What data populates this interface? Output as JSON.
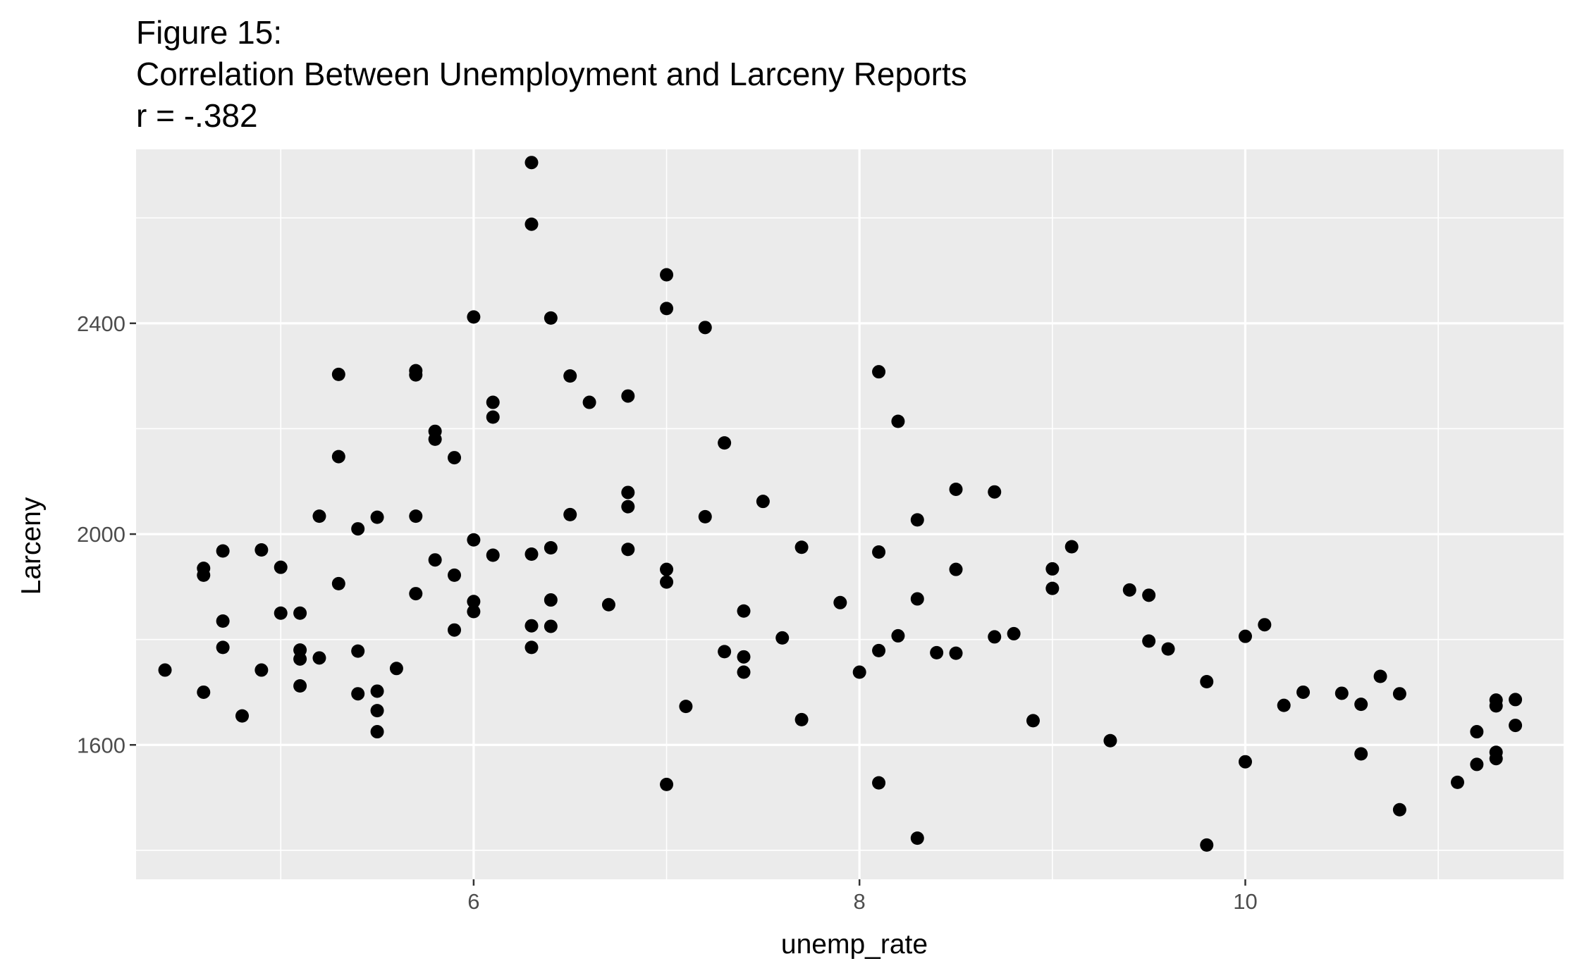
{
  "chart_data": {
    "type": "scatter",
    "title_lines": [
      "Figure 15:",
      "Correlation Between Unemployment and Larceny Reports",
      "r = -.382"
    ],
    "xlabel": "unemp_rate",
    "ylabel": "Larceny",
    "xlim": [
      4.25,
      11.65
    ],
    "ylim": [
      1345,
      2730
    ],
    "x_ticks": [
      6,
      8,
      10
    ],
    "x_minor": [
      5,
      7,
      9,
      11
    ],
    "y_ticks": [
      1600,
      2000,
      2400
    ],
    "y_minor": [
      1400,
      1800,
      2200,
      2600
    ],
    "panel_background": "#ebebeb",
    "grid_color": "#ffffff",
    "point_color": "#000000",
    "grid": true,
    "points": [
      {
        "x": 4.4,
        "y": 1742
      },
      {
        "x": 4.6,
        "y": 1700
      },
      {
        "x": 4.6,
        "y": 1935
      },
      {
        "x": 4.6,
        "y": 1922
      },
      {
        "x": 4.7,
        "y": 1968
      },
      {
        "x": 4.7,
        "y": 1835
      },
      {
        "x": 4.7,
        "y": 1785
      },
      {
        "x": 4.8,
        "y": 1655
      },
      {
        "x": 4.9,
        "y": 1970
      },
      {
        "x": 4.9,
        "y": 1742
      },
      {
        "x": 5.0,
        "y": 1937
      },
      {
        "x": 5.0,
        "y": 1850
      },
      {
        "x": 5.1,
        "y": 1850
      },
      {
        "x": 5.1,
        "y": 1780
      },
      {
        "x": 5.1,
        "y": 1763
      },
      {
        "x": 5.1,
        "y": 1712
      },
      {
        "x": 5.2,
        "y": 2034
      },
      {
        "x": 5.2,
        "y": 1765
      },
      {
        "x": 5.3,
        "y": 2303
      },
      {
        "x": 5.3,
        "y": 2147
      },
      {
        "x": 5.3,
        "y": 1906
      },
      {
        "x": 5.4,
        "y": 2010
      },
      {
        "x": 5.4,
        "y": 1778
      },
      {
        "x": 5.4,
        "y": 1697
      },
      {
        "x": 5.5,
        "y": 2032
      },
      {
        "x": 5.5,
        "y": 1702
      },
      {
        "x": 5.5,
        "y": 1665
      },
      {
        "x": 5.5,
        "y": 1625
      },
      {
        "x": 5.6,
        "y": 1745
      },
      {
        "x": 5.7,
        "y": 2310
      },
      {
        "x": 5.7,
        "y": 2302
      },
      {
        "x": 5.7,
        "y": 2034
      },
      {
        "x": 5.7,
        "y": 1887
      },
      {
        "x": 5.8,
        "y": 2195
      },
      {
        "x": 5.8,
        "y": 2180
      },
      {
        "x": 5.8,
        "y": 1951
      },
      {
        "x": 5.9,
        "y": 2145
      },
      {
        "x": 5.9,
        "y": 1922
      },
      {
        "x": 5.9,
        "y": 1818
      },
      {
        "x": 6.0,
        "y": 2412
      },
      {
        "x": 6.0,
        "y": 1989
      },
      {
        "x": 6.0,
        "y": 1872
      },
      {
        "x": 6.0,
        "y": 1853
      },
      {
        "x": 6.1,
        "y": 2250
      },
      {
        "x": 6.1,
        "y": 2222
      },
      {
        "x": 6.1,
        "y": 1960
      },
      {
        "x": 6.3,
        "y": 2705
      },
      {
        "x": 6.3,
        "y": 2588
      },
      {
        "x": 6.3,
        "y": 1962
      },
      {
        "x": 6.3,
        "y": 1826
      },
      {
        "x": 6.3,
        "y": 1785
      },
      {
        "x": 6.4,
        "y": 2410
      },
      {
        "x": 6.4,
        "y": 1974
      },
      {
        "x": 6.4,
        "y": 1875
      },
      {
        "x": 6.4,
        "y": 1825
      },
      {
        "x": 6.5,
        "y": 2300
      },
      {
        "x": 6.5,
        "y": 2037
      },
      {
        "x": 6.6,
        "y": 2250
      },
      {
        "x": 6.7,
        "y": 1866
      },
      {
        "x": 6.8,
        "y": 2262
      },
      {
        "x": 6.8,
        "y": 2079
      },
      {
        "x": 6.8,
        "y": 2052
      },
      {
        "x": 6.8,
        "y": 1971
      },
      {
        "x": 7.0,
        "y": 2492
      },
      {
        "x": 7.0,
        "y": 2428
      },
      {
        "x": 7.0,
        "y": 1933
      },
      {
        "x": 7.0,
        "y": 1909
      },
      {
        "x": 7.0,
        "y": 1525
      },
      {
        "x": 7.1,
        "y": 1673
      },
      {
        "x": 7.2,
        "y": 2392
      },
      {
        "x": 7.2,
        "y": 2033
      },
      {
        "x": 7.3,
        "y": 2173
      },
      {
        "x": 7.3,
        "y": 1777
      },
      {
        "x": 7.4,
        "y": 1854
      },
      {
        "x": 7.4,
        "y": 1767
      },
      {
        "x": 7.4,
        "y": 1738
      },
      {
        "x": 7.5,
        "y": 2062
      },
      {
        "x": 7.6,
        "y": 1803
      },
      {
        "x": 7.7,
        "y": 1975
      },
      {
        "x": 7.7,
        "y": 1648
      },
      {
        "x": 7.9,
        "y": 1870
      },
      {
        "x": 8.0,
        "y": 1738
      },
      {
        "x": 8.1,
        "y": 2308
      },
      {
        "x": 8.1,
        "y": 1966
      },
      {
        "x": 8.1,
        "y": 1779
      },
      {
        "x": 8.1,
        "y": 1528
      },
      {
        "x": 8.2,
        "y": 2214
      },
      {
        "x": 8.2,
        "y": 1807
      },
      {
        "x": 8.3,
        "y": 2027
      },
      {
        "x": 8.3,
        "y": 1877
      },
      {
        "x": 8.3,
        "y": 1423
      },
      {
        "x": 8.4,
        "y": 1775
      },
      {
        "x": 8.5,
        "y": 2085
      },
      {
        "x": 8.5,
        "y": 1933
      },
      {
        "x": 8.5,
        "y": 1774
      },
      {
        "x": 8.7,
        "y": 2080
      },
      {
        "x": 8.7,
        "y": 1805
      },
      {
        "x": 8.8,
        "y": 1811
      },
      {
        "x": 8.9,
        "y": 1646
      },
      {
        "x": 9.0,
        "y": 1934
      },
      {
        "x": 9.0,
        "y": 1897
      },
      {
        "x": 9.1,
        "y": 1976
      },
      {
        "x": 9.3,
        "y": 1608
      },
      {
        "x": 9.4,
        "y": 1894
      },
      {
        "x": 9.5,
        "y": 1884
      },
      {
        "x": 9.5,
        "y": 1797
      },
      {
        "x": 9.6,
        "y": 1782
      },
      {
        "x": 9.8,
        "y": 1720
      },
      {
        "x": 9.8,
        "y": 1410
      },
      {
        "x": 10.0,
        "y": 1806
      },
      {
        "x": 10.0,
        "y": 1568
      },
      {
        "x": 10.1,
        "y": 1828
      },
      {
        "x": 10.2,
        "y": 1675
      },
      {
        "x": 10.3,
        "y": 1700
      },
      {
        "x": 10.5,
        "y": 1698
      },
      {
        "x": 10.6,
        "y": 1677
      },
      {
        "x": 10.6,
        "y": 1583
      },
      {
        "x": 10.7,
        "y": 1730
      },
      {
        "x": 10.8,
        "y": 1697
      },
      {
        "x": 10.8,
        "y": 1477
      },
      {
        "x": 11.1,
        "y": 1529
      },
      {
        "x": 11.2,
        "y": 1625
      },
      {
        "x": 11.2,
        "y": 1563
      },
      {
        "x": 11.3,
        "y": 1685
      },
      {
        "x": 11.3,
        "y": 1674
      },
      {
        "x": 11.3,
        "y": 1586
      },
      {
        "x": 11.3,
        "y": 1574
      },
      {
        "x": 11.4,
        "y": 1686
      },
      {
        "x": 11.4,
        "y": 1637
      }
    ]
  }
}
